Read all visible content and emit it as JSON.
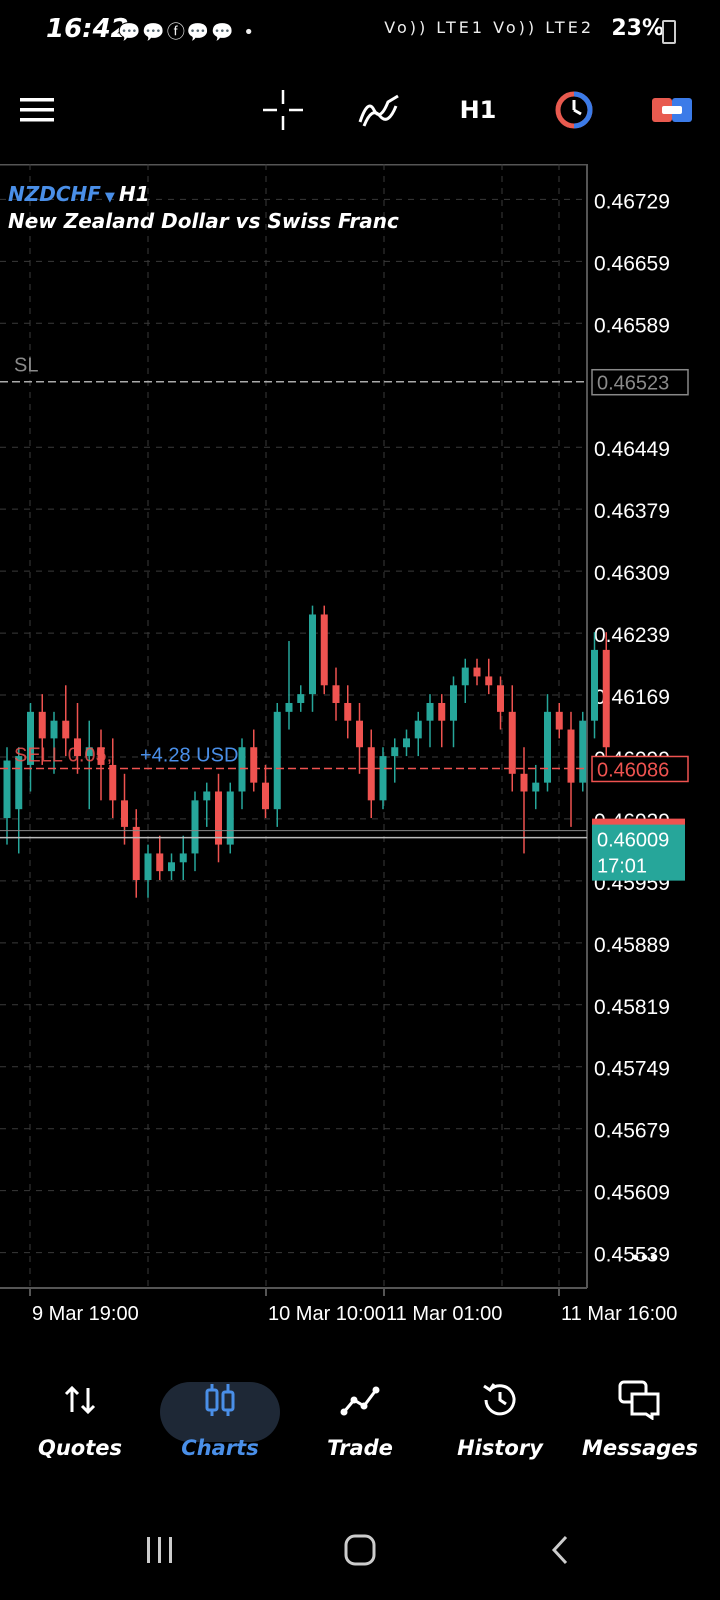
{
  "status_bar": {
    "time": "16:42",
    "notifications": "💬💬ⓕ💬💬 •",
    "network": "Vo)) LTE1 Vo)) LTE2",
    "battery": "23%"
  },
  "toolbar": {
    "icons": [
      "menu-icon",
      "crosshair-icon",
      "indicators-icon",
      "timeframe-label",
      "one-click-trading-icon",
      "trade-toggle-icon"
    ],
    "timeframe": "H1"
  },
  "chart": {
    "symbol": "NZDCHF",
    "timeframe": "H1",
    "description": "New Zealand Dollar vs Swiss Franc",
    "price_levels": [
      "0.46729",
      "0.46659",
      "0.46589",
      "0.46449",
      "0.46379",
      "0.46309",
      "0.46239",
      "0.46169",
      "0.46099",
      "0.46029",
      "0.45959",
      "0.45889",
      "0.45819",
      "0.45749",
      "0.45679",
      "0.45609",
      "0.45539"
    ],
    "sl_label": "SL",
    "sl_price": "0.46523",
    "position_label": "SELL 0.05,",
    "position_profit": "+4.28 USD",
    "position_price": "0.46086",
    "current_price": "0.46009",
    "current_time": "17:01",
    "time_labels": [
      "9 Mar 19:00",
      "10 Mar 10:00",
      "11 Mar 01:00",
      "11 Mar 16:00"
    ],
    "more_label": "•••",
    "colors": {
      "bull": "#26a69a",
      "bear": "#ef5350",
      "grid": "#3a3a3a",
      "axis": "#555555",
      "position": "#ef5350",
      "profit": "#4a8fe8",
      "bid": "#26a69a"
    }
  },
  "bottom_nav": {
    "items": [
      {
        "label": "Quotes",
        "icon": "quotes-icon"
      },
      {
        "label": "Charts",
        "icon": "charts-icon"
      },
      {
        "label": "Trade",
        "icon": "trade-icon"
      },
      {
        "label": "History",
        "icon": "history-icon"
      },
      {
        "label": "Messages",
        "icon": "messages-icon"
      }
    ],
    "active": "Charts"
  },
  "chart_data": {
    "type": "candlestick",
    "ylim": [
      0.45499,
      0.46769
    ],
    "candles": [
      {
        "o": 0.4603,
        "h": 0.4611,
        "l": 0.46,
        "c": 0.46095
      },
      {
        "o": 0.4604,
        "h": 0.4611,
        "l": 0.4599,
        "c": 0.461
      },
      {
        "o": 0.4609,
        "h": 0.4616,
        "l": 0.4606,
        "c": 0.4615
      },
      {
        "o": 0.4615,
        "h": 0.4617,
        "l": 0.4609,
        "c": 0.4612
      },
      {
        "o": 0.4612,
        "h": 0.4615,
        "l": 0.4608,
        "c": 0.4614
      },
      {
        "o": 0.4614,
        "h": 0.4618,
        "l": 0.461,
        "c": 0.4612
      },
      {
        "o": 0.4612,
        "h": 0.4616,
        "l": 0.4608,
        "c": 0.461
      },
      {
        "o": 0.461,
        "h": 0.4614,
        "l": 0.4604,
        "c": 0.4611
      },
      {
        "o": 0.4611,
        "h": 0.4613,
        "l": 0.4605,
        "c": 0.4609
      },
      {
        "o": 0.4609,
        "h": 0.4612,
        "l": 0.4603,
        "c": 0.4605
      },
      {
        "o": 0.4605,
        "h": 0.4608,
        "l": 0.46,
        "c": 0.4602
      },
      {
        "o": 0.4602,
        "h": 0.4604,
        "l": 0.4594,
        "c": 0.4596
      },
      {
        "o": 0.4596,
        "h": 0.46,
        "l": 0.4594,
        "c": 0.4599
      },
      {
        "o": 0.4599,
        "h": 0.4601,
        "l": 0.4596,
        "c": 0.4597
      },
      {
        "o": 0.4597,
        "h": 0.4599,
        "l": 0.4596,
        "c": 0.4598
      },
      {
        "o": 0.4598,
        "h": 0.4601,
        "l": 0.4596,
        "c": 0.4599
      },
      {
        "o": 0.4599,
        "h": 0.4606,
        "l": 0.4597,
        "c": 0.4605
      },
      {
        "o": 0.4605,
        "h": 0.4607,
        "l": 0.4602,
        "c": 0.4606
      },
      {
        "o": 0.4606,
        "h": 0.4608,
        "l": 0.4598,
        "c": 0.46
      },
      {
        "o": 0.46,
        "h": 0.4607,
        "l": 0.4599,
        "c": 0.4606
      },
      {
        "o": 0.4606,
        "h": 0.4612,
        "l": 0.4604,
        "c": 0.4611
      },
      {
        "o": 0.4611,
        "h": 0.4613,
        "l": 0.4606,
        "c": 0.4607
      },
      {
        "o": 0.4607,
        "h": 0.4609,
        "l": 0.4603,
        "c": 0.4604
      },
      {
        "o": 0.4604,
        "h": 0.4616,
        "l": 0.4602,
        "c": 0.4615
      },
      {
        "o": 0.4615,
        "h": 0.4623,
        "l": 0.4613,
        "c": 0.4616
      },
      {
        "o": 0.4616,
        "h": 0.4618,
        "l": 0.4615,
        "c": 0.4617
      },
      {
        "o": 0.4617,
        "h": 0.4627,
        "l": 0.4615,
        "c": 0.4626
      },
      {
        "o": 0.4626,
        "h": 0.4627,
        "l": 0.4617,
        "c": 0.4618
      },
      {
        "o": 0.4618,
        "h": 0.462,
        "l": 0.4614,
        "c": 0.4616
      },
      {
        "o": 0.4616,
        "h": 0.4618,
        "l": 0.4612,
        "c": 0.4614
      },
      {
        "o": 0.4614,
        "h": 0.4616,
        "l": 0.4608,
        "c": 0.4611
      },
      {
        "o": 0.4611,
        "h": 0.4613,
        "l": 0.4603,
        "c": 0.4605
      },
      {
        "o": 0.4605,
        "h": 0.4611,
        "l": 0.4604,
        "c": 0.461
      },
      {
        "o": 0.461,
        "h": 0.4612,
        "l": 0.4607,
        "c": 0.4611
      },
      {
        "o": 0.4611,
        "h": 0.4613,
        "l": 0.461,
        "c": 0.4612
      },
      {
        "o": 0.4612,
        "h": 0.4615,
        "l": 0.461,
        "c": 0.4614
      },
      {
        "o": 0.4614,
        "h": 0.4617,
        "l": 0.4611,
        "c": 0.4616
      },
      {
        "o": 0.4616,
        "h": 0.4617,
        "l": 0.4611,
        "c": 0.4614
      },
      {
        "o": 0.4614,
        "h": 0.4619,
        "l": 0.4611,
        "c": 0.4618
      },
      {
        "o": 0.4618,
        "h": 0.4621,
        "l": 0.4616,
        "c": 0.462
      },
      {
        "o": 0.462,
        "h": 0.4621,
        "l": 0.4618,
        "c": 0.4619
      },
      {
        "o": 0.4619,
        "h": 0.4621,
        "l": 0.4617,
        "c": 0.4618
      },
      {
        "o": 0.4618,
        "h": 0.4619,
        "l": 0.4613,
        "c": 0.4615
      },
      {
        "o": 0.4615,
        "h": 0.4618,
        "l": 0.4606,
        "c": 0.4608
      },
      {
        "o": 0.4608,
        "h": 0.4611,
        "l": 0.4599,
        "c": 0.4606
      },
      {
        "o": 0.4606,
        "h": 0.4609,
        "l": 0.4604,
        "c": 0.4607
      },
      {
        "o": 0.4607,
        "h": 0.4617,
        "l": 0.4606,
        "c": 0.4615
      },
      {
        "o": 0.4615,
        "h": 0.4616,
        "l": 0.4612,
        "c": 0.4613
      },
      {
        "o": 0.4613,
        "h": 0.4615,
        "l": 0.4602,
        "c": 0.4607
      },
      {
        "o": 0.4607,
        "h": 0.4615,
        "l": 0.4606,
        "c": 0.4614
      },
      {
        "o": 0.4614,
        "h": 0.4624,
        "l": 0.4612,
        "c": 0.4622
      },
      {
        "o": 0.4622,
        "h": 0.4624,
        "l": 0.461,
        "c": 0.4611
      }
    ]
  }
}
